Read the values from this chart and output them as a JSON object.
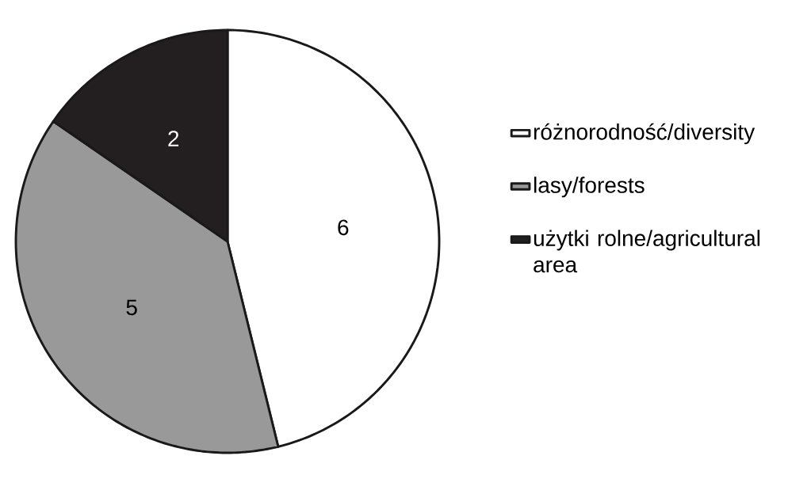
{
  "chart_data": {
    "type": "pie",
    "categories": [
      "różnorodność/diversity",
      "lasy/forests",
      "użytki rolne/agricultural area"
    ],
    "values": [
      6,
      5,
      2
    ],
    "colors": [
      "#ffffff",
      "#999999",
      "#231f20"
    ],
    "data_labels": true,
    "legend": "right"
  }
}
